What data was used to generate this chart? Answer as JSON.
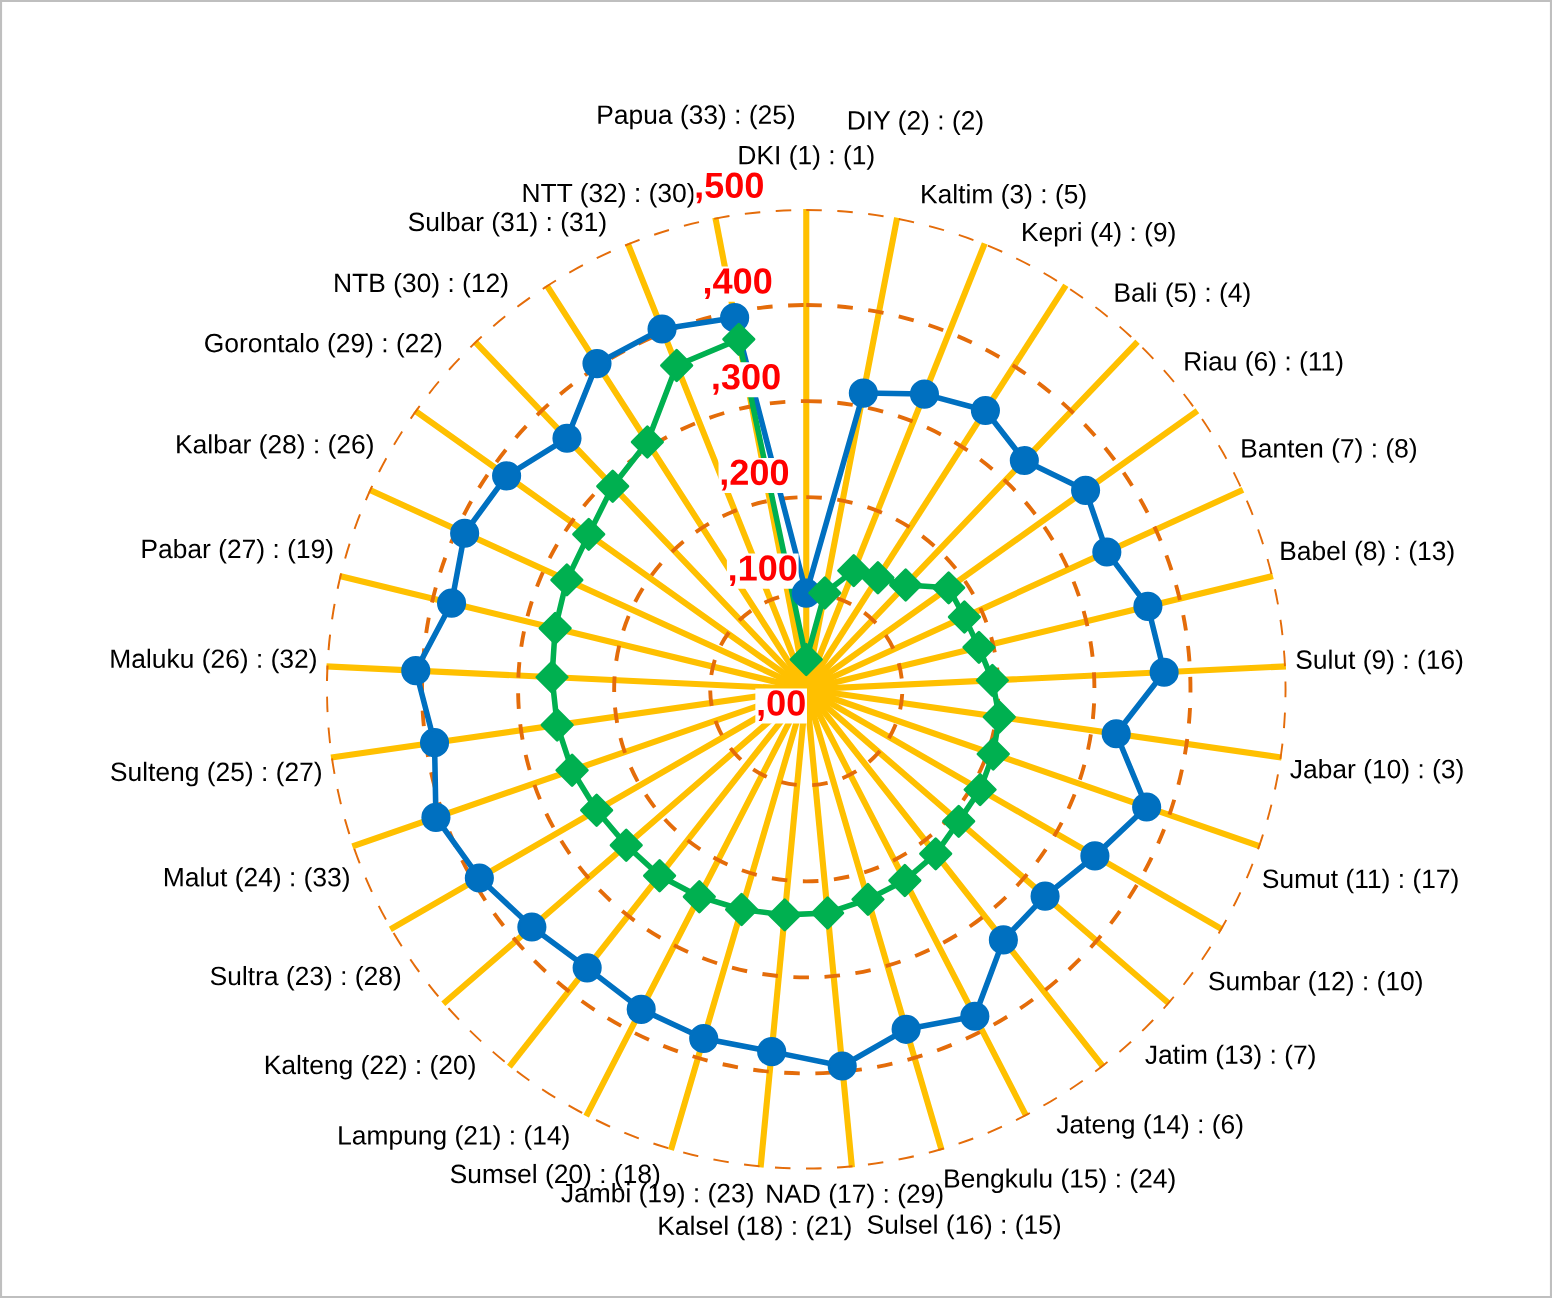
{
  "chart_data": {
    "type": "radar",
    "categories": [
      "DKI (1) : (1)",
      "DIY (2) : (2)",
      "Kaltim (3) : (5)",
      "Kepri (4) : (9)",
      "Bali (5) : (4)",
      "Riau (6) : (11)",
      "Banten (7) : (8)",
      "Babel (8) : (13)",
      "Sulut (9) : (16)",
      "Jabar (10) : (3)",
      "Sumut (11) : (17)",
      "Sumbar (12) : (10)",
      "Jatim (13) : (7)",
      "Jateng (14) : (6)",
      "Bengkulu (15) : (24)",
      "Sulsel (16) : (15)",
      "NAD (17) : (29)",
      "Kalsel (18) : (21)",
      "Jambi (19) : (23)",
      "Sumsel (20) : (18)",
      "Lampung (21) : (14)",
      "Kalteng (22) : (20)",
      "Sultra (23) : (28)",
      "Malut (24) : (33)",
      "Sulteng (25) : (27)",
      "Maluku (26) : (32)",
      "Pabar (27) : (19)",
      "Kalbar (28) : (26)",
      "Gorontalo (29) : (22)",
      "NTB (30) : (12)",
      "Sulbar (31) : (31)",
      "NTT (32) : (30)",
      "Papua (33) : (25)"
    ],
    "series": [
      {
        "color": "#0070c0",
        "marker": "circle",
        "values": [
          100,
          314,
          331,
          345,
          329,
          357,
          344,
          366,
          373,
          326,
          375,
          347,
          329,
          332,
          383,
          369,
          394,
          379,
          379,
          375,
          369,
          378,
          393,
          408,
          391,
          407,
          380,
          391,
          383,
          361,
          403,
          404,
          394
        ]
      },
      {
        "color": "#00b050",
        "marker": "diamond",
        "values": [
          31,
          102,
          133,
          138,
          150,
          182,
          181,
          185,
          194,
          203,
          206,
          209,
          210,
          218,
          224,
          228,
          234,
          236,
          239,
          243,
          247,
          248,
          252,
          258,
          262,
          265,
          269,
          274,
          278,
          292,
          306,
          363,
          371
        ]
      }
    ],
    "ylim": [
      0,
      500
    ],
    "yticks": [
      {
        "value": 0,
        "label": ",00"
      },
      {
        "value": 100,
        "label": ",100"
      },
      {
        "value": 200,
        "label": ",200"
      },
      {
        "value": 300,
        "label": ",300"
      },
      {
        "value": 400,
        "label": ",400"
      },
      {
        "value": 500,
        "label": ",500"
      }
    ],
    "grid": true,
    "line_style": "solid"
  }
}
